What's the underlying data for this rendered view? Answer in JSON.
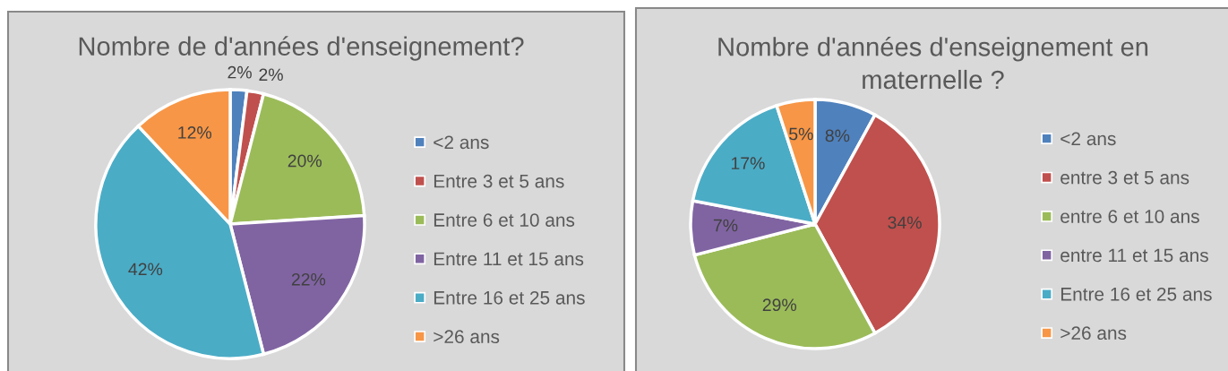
{
  "chart_data": [
    {
      "type": "pie",
      "title": "Nombre de d'années d'enseignement?",
      "categories": [
        "<2 ans",
        "Entre 3 et 5 ans",
        "Entre 6 et 10 ans",
        "Entre 11 et 15 ans",
        "Entre 16 et 25 ans",
        ">26 ans"
      ],
      "values": [
        2,
        2,
        20,
        22,
        42,
        12
      ],
      "value_labels": [
        "2%",
        "2%",
        "20%",
        "22%",
        "42%",
        "12%"
      ],
      "colors": [
        "#4f81bd",
        "#c0504d",
        "#9bbb59",
        "#8064a2",
        "#4bacc6",
        "#f79646"
      ],
      "legend": "right"
    },
    {
      "type": "pie",
      "title": "Nombre d'années d'enseignement en maternelle ?",
      "categories": [
        "<2 ans",
        "entre 3 et 5 ans",
        "entre 6 et 10 ans",
        "entre 11 et 15 ans",
        "Entre 16 et 25 ans",
        ">26 ans"
      ],
      "values": [
        8,
        34,
        29,
        7,
        17,
        5
      ],
      "value_labels": [
        "8%",
        "34%",
        "29%",
        "7%",
        "17%",
        "5%"
      ],
      "colors": [
        "#4f81bd",
        "#c0504d",
        "#9bbb59",
        "#8064a2",
        "#4bacc6",
        "#f79646"
      ],
      "legend": "right"
    }
  ]
}
